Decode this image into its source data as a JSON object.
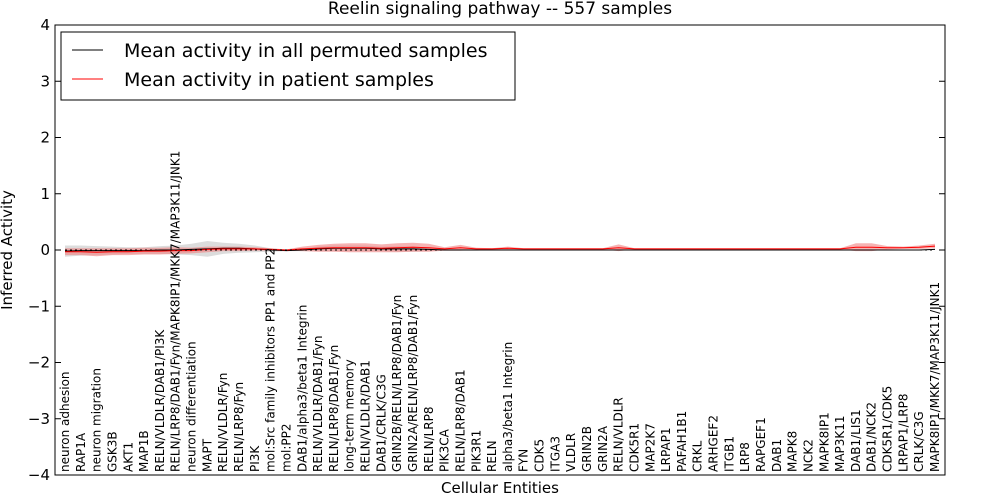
{
  "chart_data": {
    "type": "line",
    "title": "Reelin signaling pathway -- 557 samples",
    "xlabel": "Cellular Entities",
    "ylabel": "Inferred Activity",
    "ylim": [
      -4,
      4
    ],
    "yticks": [
      -4,
      -3,
      -2,
      -1,
      0,
      1,
      2,
      3,
      4
    ],
    "ytick_labels": [
      "−4",
      "−3",
      "−2",
      "−1",
      "0",
      "1",
      "2",
      "3",
      "4"
    ],
    "grid": false,
    "legend_position": "top-left",
    "categories": [
      "neuron adhesion",
      "RAP1A",
      "neuron migration",
      "GSK3B",
      "AKT1",
      "MAP1B",
      "RELN/VLDLR/DAB1/PI3K",
      "RELN/LRP8/DAB1/Fyn/MAPK8IP1/MKK7/MAP3K11/JNK1",
      "neuron differentiation",
      "MAPT",
      "RELN/VLDLR/Fyn",
      "RELN/LRP8/Fyn",
      "PI3K",
      "mol:Src family inhibitors PP1 and PP2",
      "mol:PP2",
      "DAB1/alpha3/beta1 Integrin",
      "RELN/VLDLR/DAB1/Fyn",
      "RELN/LRP8/DAB1/Fyn",
      "long-term memory",
      "RELN/VLDLR/DAB1",
      "DAB1/CRLK/C3G",
      "GRIN2B/RELN/LRP8/DAB1/Fyn",
      "GRIN2A/RELN/LRP8/DAB1/Fyn",
      "RELN/LRP8",
      "PIK3CA",
      "RELN/LRP8/DAB1",
      "PIK3R1",
      "RELN",
      "alpha3/beta1 Integrin",
      "FYN",
      "CDK5",
      "ITGA3",
      "VLDLR",
      "GRIN2B",
      "GRIN2A",
      "RELN/VLDLR",
      "CDK5R1",
      "MAP2K7",
      "LRPAP1",
      "PAFAH1B1",
      "CRKL",
      "ARHGEF2",
      "ITGB1",
      "LRP8",
      "RAPGEF1",
      "DAB1",
      "MAPK8",
      "NCK2",
      "MAPK8IP1",
      "MAP3K11",
      "DAB1/LIS1",
      "DAB1/NCK2",
      "CDK5R1/CDK5",
      "LRPAP1/LRP8",
      "CRLK/C3G",
      "MAPK8IP1/MKK7/MAP3K11/JNK1"
    ],
    "series": [
      {
        "name": "Mean activity in all permuted samples",
        "color": "#000000",
        "values": [
          -0.02,
          -0.01,
          -0.01,
          -0.01,
          -0.01,
          -0.01,
          0.0,
          0.0,
          0.01,
          0.02,
          0.03,
          0.03,
          0.02,
          0.0,
          -0.01,
          0.0,
          0.02,
          0.03,
          0.03,
          0.03,
          0.02,
          0.02,
          0.02,
          0.01,
          0.0,
          0.0,
          0.0,
          0.0,
          0.0,
          0.0,
          0.0,
          0.0,
          0.0,
          0.0,
          0.0,
          0.0,
          0.0,
          0.0,
          0.0,
          0.0,
          0.0,
          0.0,
          0.0,
          0.0,
          0.0,
          0.0,
          0.0,
          0.0,
          0.0,
          0.0,
          0.0,
          0.0,
          0.0,
          0.0,
          0.0,
          0.01
        ],
        "band": [
          0.1,
          0.09,
          0.08,
          0.07,
          0.06,
          0.06,
          0.07,
          0.08,
          0.1,
          0.14,
          0.1,
          0.08,
          0.06,
          0.03,
          0.01,
          0.02,
          0.04,
          0.05,
          0.05,
          0.05,
          0.04,
          0.05,
          0.05,
          0.03,
          0.01,
          0.01,
          0.01,
          0.0,
          0.0,
          0.0,
          0.0,
          0.0,
          0.0,
          0.0,
          0.0,
          0.0,
          0.0,
          0.0,
          0.0,
          0.0,
          0.0,
          0.0,
          0.0,
          0.0,
          0.0,
          0.0,
          0.0,
          0.0,
          0.0,
          0.0,
          0.0,
          0.0,
          0.0,
          0.0,
          0.0,
          0.01
        ]
      },
      {
        "name": "Mean activity in patient samples",
        "color": "#ff0000",
        "band_color": "#f08080",
        "values": [
          -0.03,
          -0.03,
          -0.04,
          -0.03,
          -0.03,
          -0.02,
          -0.02,
          -0.01,
          -0.01,
          0.01,
          0.02,
          0.02,
          0.02,
          0.01,
          0.0,
          0.02,
          0.03,
          0.04,
          0.04,
          0.04,
          0.03,
          0.04,
          0.05,
          0.04,
          0.02,
          0.04,
          0.02,
          0.02,
          0.03,
          0.02,
          0.02,
          0.02,
          0.02,
          0.02,
          0.02,
          0.04,
          0.02,
          0.02,
          0.02,
          0.02,
          0.02,
          0.02,
          0.02,
          0.02,
          0.02,
          0.02,
          0.02,
          0.02,
          0.02,
          0.02,
          0.05,
          0.05,
          0.04,
          0.04,
          0.05,
          0.07
        ],
        "band": [
          0.06,
          0.06,
          0.07,
          0.06,
          0.06,
          0.06,
          0.06,
          0.06,
          0.05,
          0.05,
          0.04,
          0.04,
          0.03,
          0.02,
          0.01,
          0.04,
          0.06,
          0.07,
          0.08,
          0.08,
          0.07,
          0.08,
          0.08,
          0.07,
          0.03,
          0.05,
          0.02,
          0.01,
          0.03,
          0.01,
          0.01,
          0.01,
          0.01,
          0.01,
          0.01,
          0.06,
          0.01,
          0.01,
          0.01,
          0.01,
          0.01,
          0.01,
          0.01,
          0.01,
          0.01,
          0.01,
          0.01,
          0.01,
          0.01,
          0.01,
          0.07,
          0.07,
          0.03,
          0.02,
          0.03,
          0.04
        ]
      }
    ]
  }
}
